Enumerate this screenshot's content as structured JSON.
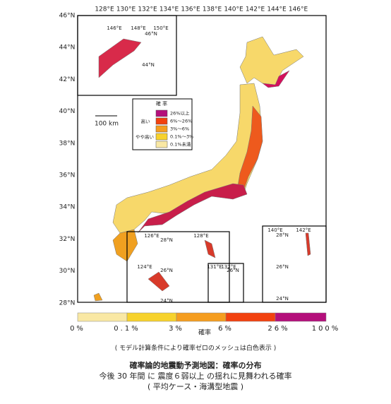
{
  "map": {
    "lon_labels": [
      "128°E",
      "130°E",
      "132°E",
      "134°E",
      "136°E",
      "138°E",
      "140°E",
      "142°E",
      "144°E",
      "146°E"
    ],
    "lat_labels": [
      "46°N",
      "44°N",
      "42°N",
      "40°N",
      "38°N",
      "36°N",
      "34°N",
      "32°N",
      "30°N",
      "28°N"
    ],
    "inset_north": {
      "lon_labels": [
        "146°E",
        "148°E",
        "150°E"
      ],
      "lat_labels": [
        "46°N",
        "44°N"
      ]
    },
    "inset_ryukyu": {
      "lon_labels": [
        "126°E",
        "128°E",
        "124°E"
      ],
      "lat_labels": [
        "28°N",
        "26°N",
        "24°N"
      ]
    },
    "inset_daito": {
      "lon_labels": [
        "131°E",
        "132°E"
      ],
      "lat_labels": [
        "26°N"
      ]
    },
    "inset_ogasawara": {
      "lon_labels": [
        "140°E",
        "142°E"
      ],
      "lat_labels": [
        "28°N",
        "26°N",
        "24°N"
      ]
    },
    "scale": "100 km"
  },
  "legend": {
    "title": "確 率",
    "items": [
      "26%以上",
      "6%〜26%",
      "3%〜6%",
      "0.1%〜3%",
      "0.1%未満"
    ],
    "high": "高い",
    "somewhat_high": "やや高い"
  },
  "colorbar": {
    "labels": [
      "0%",
      "0.1%",
      "3%",
      "6%",
      "26%",
      "100%"
    ],
    "title": "確率"
  },
  "note": "( モデル計算条件により確率ゼロのメッシュは白色表示 )",
  "caption": [
    "確率論的地震動予測地図：確率の分布",
    "今後 30 年間 に 震度６弱以上 の揺れに見舞われる確率",
    "( 平均ケース・海溝型地震 )"
  ]
}
